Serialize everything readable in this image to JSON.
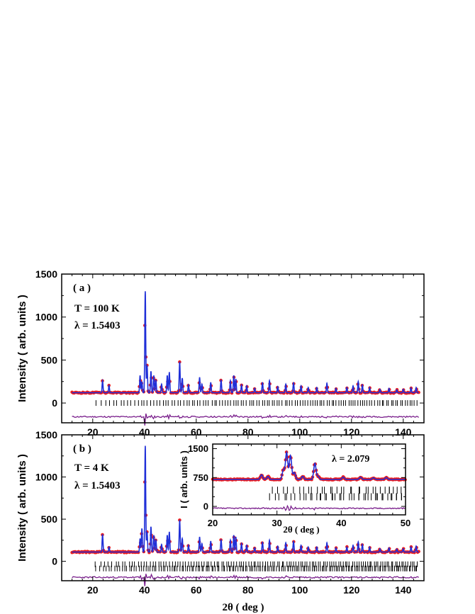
{
  "colors": {
    "observed": "#ee1c1c",
    "calculated": "#1f2fd8",
    "difference": "#7a1f8c",
    "bragg": "#000000"
  },
  "chart_data": [
    {
      "id": "a",
      "type": "line",
      "panel_label": "( a )",
      "annotations": [
        "T = 100 K",
        "λ = 1.5403"
      ],
      "xlabel": "",
      "ylabel": "Intensity  ( arb. units )",
      "xlim": [
        8,
        148
      ],
      "ylim": [
        -230,
        1500
      ],
      "xticks": [
        20,
        40,
        60,
        80,
        100,
        120,
        140
      ],
      "xticklabels": [
        "20",
        "40",
        "60",
        "80",
        "100",
        "120",
        "140"
      ],
      "yticks": [
        0,
        500,
        1000,
        1500
      ],
      "yticklabels": [
        "0",
        "500",
        "1000",
        "1500"
      ],
      "baseline": 120,
      "peaks": [
        [
          23.8,
          140
        ],
        [
          26.3,
          85
        ],
        [
          38.3,
          200
        ],
        [
          39.0,
          130
        ],
        [
          40.3,
          1180
        ],
        [
          41.0,
          320
        ],
        [
          42.5,
          250
        ],
        [
          43.6,
          200
        ],
        [
          44.4,
          150
        ],
        [
          46.6,
          100
        ],
        [
          48.8,
          200
        ],
        [
          49.6,
          240
        ],
        [
          53.6,
          360
        ],
        [
          54.6,
          170
        ],
        [
          57.0,
          90
        ],
        [
          61.3,
          180
        ],
        [
          62.2,
          100
        ],
        [
          65.6,
          120
        ],
        [
          69.6,
          150
        ],
        [
          73.2,
          140
        ],
        [
          74.5,
          200
        ],
        [
          75.3,
          160
        ],
        [
          77.5,
          90
        ],
        [
          79.5,
          80
        ],
        [
          82.6,
          50
        ],
        [
          85.6,
          120
        ],
        [
          88.3,
          140
        ],
        [
          91.5,
          70
        ],
        [
          94.6,
          100
        ],
        [
          97.6,
          120
        ],
        [
          100.5,
          80
        ],
        [
          103.3,
          60
        ],
        [
          106.6,
          60
        ],
        [
          110.5,
          110
        ],
        [
          114.0,
          50
        ],
        [
          118.2,
          60
        ],
        [
          120.6,
          80
        ],
        [
          122.6,
          130
        ],
        [
          124.2,
          90
        ],
        [
          127.0,
          60
        ],
        [
          131.0,
          40
        ],
        [
          134.5,
          50
        ],
        [
          137.5,
          35
        ],
        [
          140.0,
          40
        ],
        [
          143.0,
          55
        ],
        [
          145.0,
          60
        ]
      ],
      "x_start": 12,
      "x_end": 146,
      "bragg": [
        {
          "y": 0,
          "count": 120
        }
      ],
      "difference_offset": -160,
      "grid": false
    },
    {
      "id": "b",
      "type": "line",
      "panel_label": "( b )",
      "annotations": [
        "T = 4 K",
        "λ = 1.5403"
      ],
      "xlabel": "2θ ( deg )",
      "ylabel": "Intensity  ( arb. units )",
      "xlim": [
        8,
        148
      ],
      "ylim": [
        -230,
        1500
      ],
      "xticks": [
        20,
        40,
        60,
        80,
        100,
        120,
        140
      ],
      "xticklabels": [
        "20",
        "40",
        "60",
        "80",
        "100",
        "120",
        "140"
      ],
      "yticks": [
        0,
        500,
        1000,
        1500
      ],
      "yticklabels": [
        "0",
        "500",
        "1000",
        "1500"
      ],
      "baseline": 110,
      "peaks": [
        [
          23.8,
          210
        ],
        [
          26.3,
          60
        ],
        [
          38.3,
          160
        ],
        [
          39.0,
          280
        ],
        [
          40.3,
          1260
        ],
        [
          41.0,
          240
        ],
        [
          42.5,
          300
        ],
        [
          43.6,
          200
        ],
        [
          44.4,
          150
        ],
        [
          46.6,
          90
        ],
        [
          48.8,
          200
        ],
        [
          49.6,
          240
        ],
        [
          53.6,
          380
        ],
        [
          54.6,
          160
        ],
        [
          57.0,
          80
        ],
        [
          61.3,
          180
        ],
        [
          62.2,
          100
        ],
        [
          65.6,
          130
        ],
        [
          69.6,
          150
        ],
        [
          73.2,
          140
        ],
        [
          74.5,
          200
        ],
        [
          75.3,
          180
        ],
        [
          77.5,
          100
        ],
        [
          79.5,
          80
        ],
        [
          82.6,
          50
        ],
        [
          85.6,
          120
        ],
        [
          88.3,
          140
        ],
        [
          91.5,
          70
        ],
        [
          94.6,
          110
        ],
        [
          97.6,
          130
        ],
        [
          100.5,
          80
        ],
        [
          103.3,
          60
        ],
        [
          106.6,
          60
        ],
        [
          110.5,
          110
        ],
        [
          114.0,
          50
        ],
        [
          118.2,
          60
        ],
        [
          120.6,
          80
        ],
        [
          122.6,
          120
        ],
        [
          124.2,
          90
        ],
        [
          127.0,
          60
        ],
        [
          131.0,
          40
        ],
        [
          134.5,
          50
        ],
        [
          137.5,
          35
        ],
        [
          140.0,
          40
        ],
        [
          143.0,
          60
        ],
        [
          145.0,
          70
        ]
      ],
      "x_start": 12,
      "x_end": 146,
      "bragg": [
        {
          "y": -35,
          "count": 130
        },
        {
          "y": -85,
          "count": 170
        }
      ],
      "difference_offset": -190,
      "grid": false
    },
    {
      "id": "inset",
      "type": "line",
      "annotations": [
        "λ = 2.079"
      ],
      "xlabel": "2θ ( deg )",
      "ylabel": "I ( arb. units )",
      "xlim": [
        20,
        50
      ],
      "ylim": [
        -220,
        1620
      ],
      "xticks": [
        20,
        30,
        40,
        50
      ],
      "xticklabels": [
        "20",
        "30",
        "40",
        "50"
      ],
      "yticks": [
        0,
        750,
        1500
      ],
      "yticklabels": [
        "0",
        "750",
        "1500"
      ],
      "baseline": 700,
      "peaks": [
        [
          27.6,
          120
        ],
        [
          28.6,
          80
        ],
        [
          31.0,
          250
        ],
        [
          31.5,
          700
        ],
        [
          32.1,
          620
        ],
        [
          32.7,
          180
        ],
        [
          34.0,
          80
        ],
        [
          35.9,
          420
        ],
        [
          36.4,
          80
        ],
        [
          40.3,
          60
        ],
        [
          43.0,
          60
        ],
        [
          45.0,
          40
        ],
        [
          47.0,
          50
        ]
      ],
      "x_start": 20,
      "x_end": 50,
      "bragg": [
        {
          "y": 420,
          "count": 32
        },
        {
          "y": 250,
          "count": 44
        }
      ],
      "difference_offset": -50,
      "grid": false
    }
  ]
}
